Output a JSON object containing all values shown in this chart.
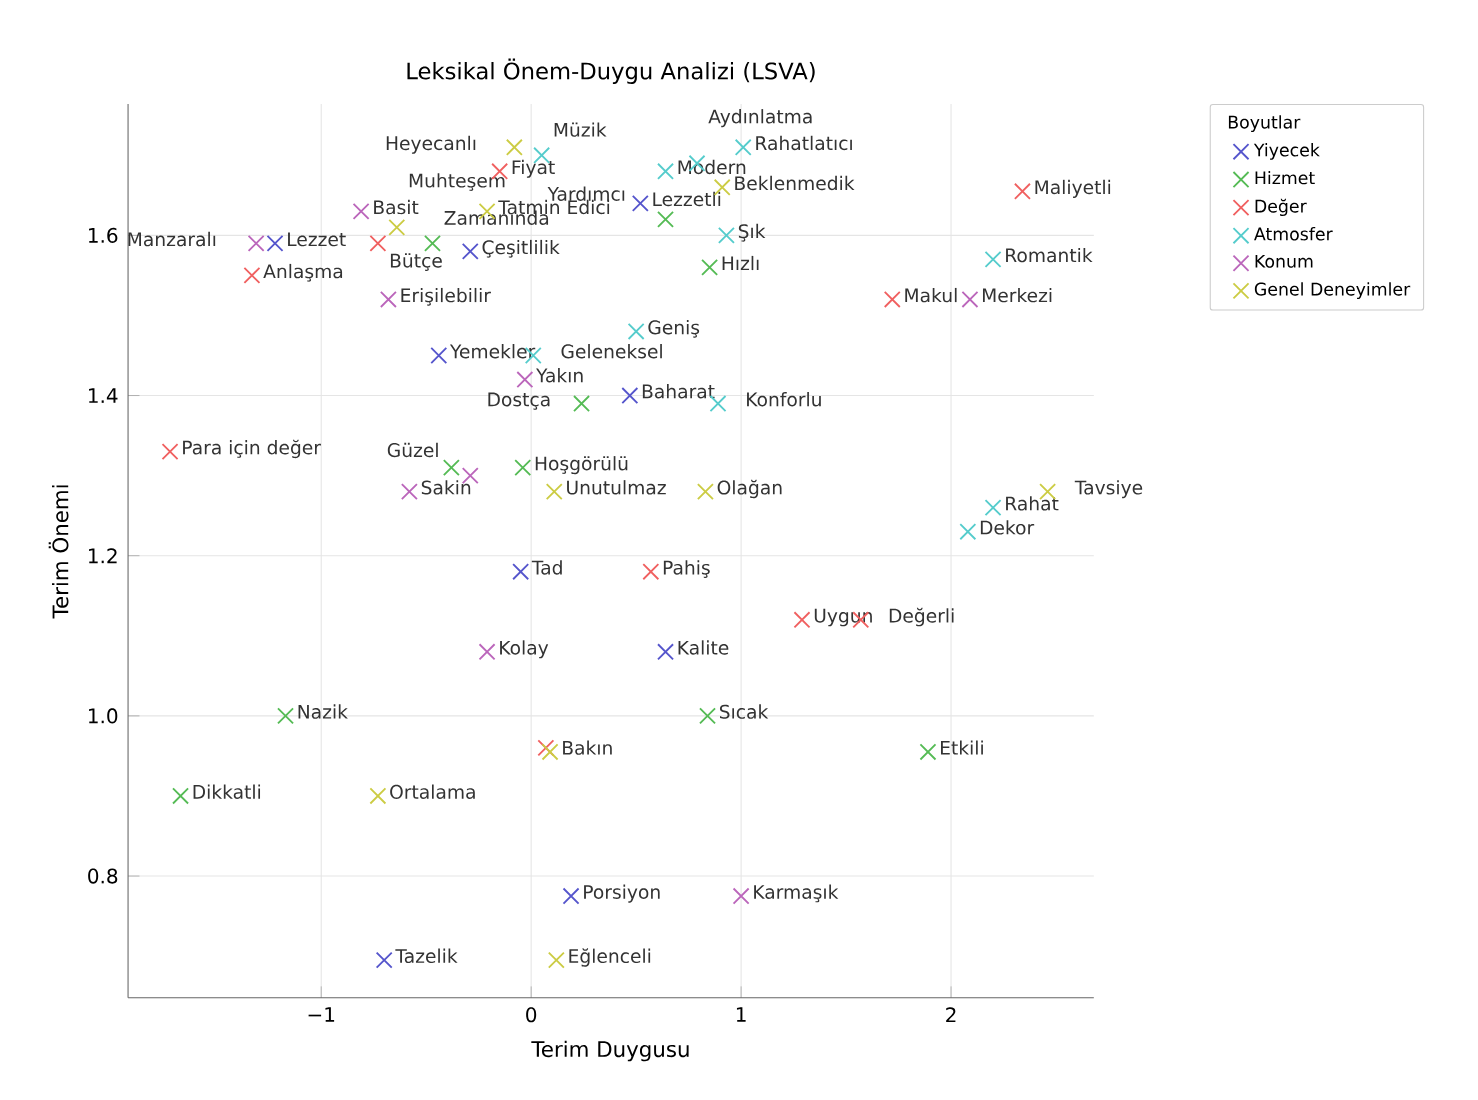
{
  "chart_data": {
    "type": "scatter",
    "title": "Leksikal Önem-Duygu Analizi (LSVA)",
    "xlabel": "Terim Duygusu",
    "ylabel": "Terim Önemi",
    "legend_title": "Boyutlar",
    "legend": "top right",
    "grid": true,
    "marker": "cross",
    "xlim": [
      -1.92,
      2.68
    ],
    "ylim": [
      0.648,
      1.764
    ],
    "xticks": [
      {
        "value": -1,
        "label": "−1"
      },
      0,
      1,
      2
    ],
    "yticks": [
      {
        "value": 0.8,
        "label": "0.8"
      },
      {
        "value": 1.0,
        "label": "1.0"
      },
      {
        "value": 1.2,
        "label": "1.2"
      },
      {
        "value": 1.4,
        "label": "1.4"
      },
      {
        "value": 1.6,
        "label": "1.6"
      }
    ],
    "series": [
      {
        "name": "Yiyecek",
        "color": "#5555cc",
        "x": [
          -1.22,
          -0.29,
          0.52,
          -0.44,
          0.47,
          -0.05,
          0.64,
          0.19,
          -0.7
        ],
        "values": [
          1.59,
          1.58,
          1.64,
          1.45,
          1.4,
          1.18,
          1.08,
          0.775,
          0.695
        ]
      },
      {
        "name": "Hizmet",
        "color": "#55bb55",
        "x": [
          -0.47,
          0.64,
          0.85,
          0.24,
          -0.38,
          -0.04,
          -1.17,
          -1.67,
          0.84,
          1.89
        ],
        "values": [
          1.59,
          1.62,
          1.56,
          1.39,
          1.31,
          1.31,
          1.0,
          0.9,
          1.0,
          0.955
        ]
      },
      {
        "name": "Değer",
        "color": "#f06060",
        "x": [
          -0.15,
          -0.73,
          -1.33,
          -1.72,
          1.72,
          2.34,
          0.57,
          1.29,
          1.57,
          0.07
        ],
        "values": [
          1.68,
          1.59,
          1.55,
          1.33,
          1.52,
          1.655,
          1.18,
          1.12,
          1.12,
          0.96
        ]
      },
      {
        "name": "Atmosfer",
        "color": "#55cccc",
        "x": [
          0.05,
          1.01,
          0.64,
          0.79,
          0.93,
          0.5,
          0.01,
          0.89,
          2.08,
          2.2,
          2.2
        ],
        "values": [
          1.7,
          1.71,
          1.68,
          1.69,
          1.6,
          1.48,
          1.45,
          1.39,
          1.23,
          1.26,
          1.57
        ]
      },
      {
        "name": "Konum",
        "color": "#bb66bb",
        "x": [
          -0.81,
          -1.31,
          -0.68,
          -0.03,
          -0.58,
          -0.29,
          -0.21,
          1.0,
          2.09
        ],
        "values": [
          1.63,
          1.59,
          1.52,
          1.42,
          1.28,
          1.3,
          1.08,
          0.775,
          1.52
        ]
      },
      {
        "name": "Genel Deneyimler",
        "color": "#cccc44",
        "x": [
          -0.08,
          -0.64,
          -0.21,
          0.91,
          0.11,
          0.83,
          2.46,
          -0.73,
          0.12,
          0.09
        ],
        "values": [
          1.71,
          1.61,
          1.63,
          1.66,
          1.28,
          1.28,
          1.28,
          0.9,
          0.695,
          0.955
        ]
      }
    ],
    "annotations": [
      {
        "text": "Lezzet",
        "x": -1.22,
        "y": 1.59
      },
      {
        "text": "Çeşitlilik",
        "x": -0.29,
        "y": 1.58
      },
      {
        "text": "Lezzetli",
        "x": 0.52,
        "y": 1.64
      },
      {
        "text": "Yemekler",
        "x": -0.44,
        "y": 1.45
      },
      {
        "text": "Baharat",
        "x": 0.47,
        "y": 1.4
      },
      {
        "text": "Tad",
        "x": -0.05,
        "y": 1.18
      },
      {
        "text": "Kalite",
        "x": 0.64,
        "y": 1.08
      },
      {
        "text": "Porsiyon",
        "x": 0.19,
        "y": 0.775
      },
      {
        "text": "Tazelik",
        "x": -0.7,
        "y": 0.695
      },
      {
        "text": "Zamanında",
        "x": -0.47,
        "y": 1.59
      },
      {
        "text": "Yardımcı",
        "x": 0.64,
        "y": 1.62
      },
      {
        "text": "Hızlı",
        "x": 0.85,
        "y": 1.56
      },
      {
        "text": "Dostça",
        "x": 0.24,
        "y": 1.39
      },
      {
        "text": "Hoşgörülü",
        "x": -0.04,
        "y": 1.31
      },
      {
        "text": "Nazik",
        "x": -1.17,
        "y": 1.0
      },
      {
        "text": "Dikkatli",
        "x": -1.67,
        "y": 0.9
      },
      {
        "text": "Sıcak",
        "x": 0.84,
        "y": 1.0
      },
      {
        "text": "Etkili",
        "x": 1.89,
        "y": 0.955
      },
      {
        "text": "Fiyat",
        "x": -0.15,
        "y": 1.68
      },
      {
        "text": "Bütçe",
        "x": -0.73,
        "y": 1.59
      },
      {
        "text": "Anlaşma",
        "x": -1.33,
        "y": 1.55
      },
      {
        "text": "Para için değer",
        "x": -1.72,
        "y": 1.33
      },
      {
        "text": "Makul",
        "x": 1.72,
        "y": 1.52
      },
      {
        "text": "Maliyetli",
        "x": 2.34,
        "y": 1.655
      },
      {
        "text": "Pahiş",
        "x": 0.57,
        "y": 1.18
      },
      {
        "text": "Uygun",
        "x": 1.29,
        "y": 1.12
      },
      {
        "text": "Değerli",
        "x": 1.57,
        "y": 1.12
      },
      {
        "text": "Bakın",
        "x": 0.09,
        "y": 0.955
      },
      {
        "text": "Müzik",
        "x": 0.05,
        "y": 1.7
      },
      {
        "text": "Rahatlatıcı",
        "x": 1.01,
        "y": 1.71
      },
      {
        "text": "Modern",
        "x": 0.64,
        "y": 1.68
      },
      {
        "text": "Aydınlatma",
        "x": 0.79,
        "y": 1.69
      },
      {
        "text": "Şık",
        "x": 0.93,
        "y": 1.6
      },
      {
        "text": "Geniş",
        "x": 0.5,
        "y": 1.48
      },
      {
        "text": "Geleneksel",
        "x": 0.01,
        "y": 1.45
      },
      {
        "text": "Konforlu",
        "x": 0.89,
        "y": 1.39
      },
      {
        "text": "Dekor",
        "x": 2.08,
        "y": 1.23
      },
      {
        "text": "Rahat",
        "x": 2.2,
        "y": 1.26
      },
      {
        "text": "Romantik",
        "x": 2.2,
        "y": 1.57
      },
      {
        "text": "Basit",
        "x": -0.81,
        "y": 1.63
      },
      {
        "text": "Manzaralı",
        "x": -1.31,
        "y": 1.59
      },
      {
        "text": "Erişilebilir",
        "x": -0.68,
        "y": 1.52
      },
      {
        "text": "Yakın",
        "x": -0.03,
        "y": 1.42
      },
      {
        "text": "Sakin",
        "x": -0.58,
        "y": 1.28
      },
      {
        "text": "Güzel",
        "x": -0.29,
        "y": 1.3
      },
      {
        "text": "Kolay",
        "x": -0.21,
        "y": 1.08
      },
      {
        "text": "Karmaşık",
        "x": 1.0,
        "y": 0.775
      },
      {
        "text": "Merkezi",
        "x": 2.09,
        "y": 1.52
      },
      {
        "text": "Heyecanlı",
        "x": -0.08,
        "y": 1.71
      },
      {
        "text": "Muhteşem",
        "x": -0.64,
        "y": 1.61
      },
      {
        "text": "Tatmin Edici",
        "x": -0.21,
        "y": 1.63
      },
      {
        "text": "Beklenmedik",
        "x": 0.91,
        "y": 1.66
      },
      {
        "text": "Unutulmaz",
        "x": 0.11,
        "y": 1.28
      },
      {
        "text": "Olağan",
        "x": 0.83,
        "y": 1.28
      },
      {
        "text": "Tavsiye",
        "x": 2.46,
        "y": 1.28
      },
      {
        "text": "Ortalama",
        "x": -0.73,
        "y": 0.9
      },
      {
        "text": "Eğlenceli",
        "x": 0.12,
        "y": 0.695
      }
    ]
  }
}
